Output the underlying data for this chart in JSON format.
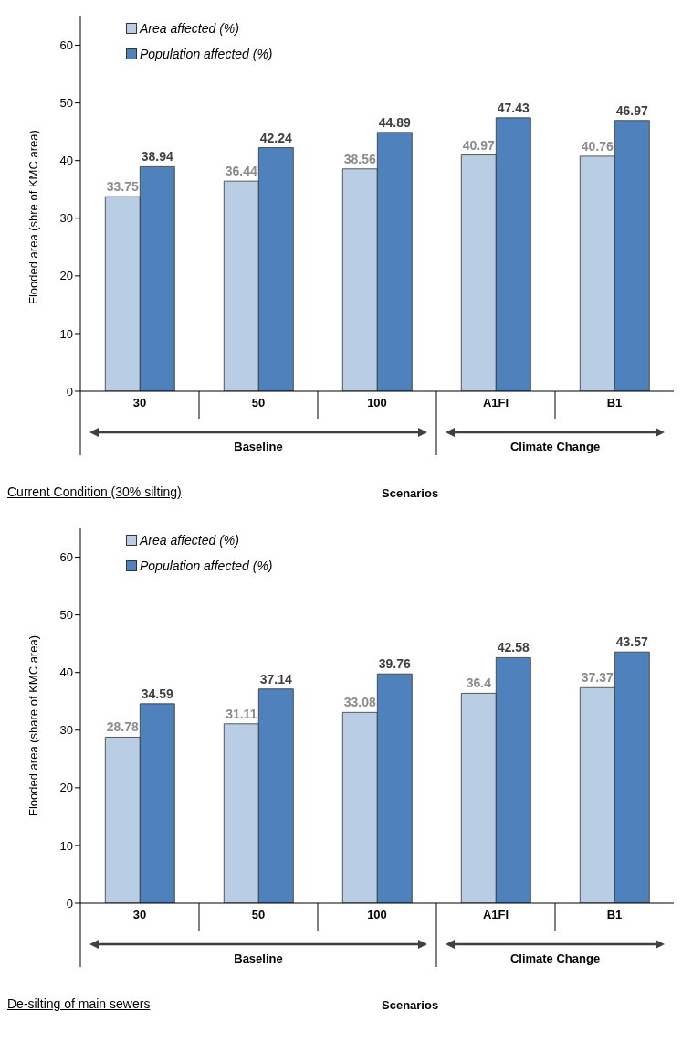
{
  "chart_data": [
    {
      "type": "bar",
      "ylabel": "Flooded area (shre of KMC area)",
      "xlabel": "Scenarios",
      "categories": [
        "30",
        "50",
        "100",
        "A1FI",
        "B1"
      ],
      "series": [
        {
          "name": "Area affected (%)",
          "color": "#b9cde5",
          "values": [
            33.75,
            36.44,
            38.56,
            40.97,
            40.76
          ]
        },
        {
          "name": "Population affected (%)",
          "color": "#4f81bd",
          "values": [
            38.94,
            42.24,
            44.89,
            47.43,
            46.97
          ]
        }
      ],
      "ylim": [
        0,
        65
      ],
      "yticks": [
        0,
        10,
        20,
        30,
        40,
        50,
        60
      ],
      "grid": false,
      "legend": "top left",
      "data_labels": true,
      "annotations": [
        "Baseline",
        "Climate Change",
        "Current Condition (30%  silting)"
      ]
    },
    {
      "type": "bar",
      "ylabel": "Flooded area (share of KMC area)",
      "xlabel": "Scenarios",
      "categories": [
        "30",
        "50",
        "100",
        "A1FI",
        "B1"
      ],
      "series": [
        {
          "name": "Area affected (%)",
          "color": "#b9cde5",
          "values": [
            28.78,
            31.11,
            33.08,
            36.4,
            37.37
          ]
        },
        {
          "name": "Population affected (%)",
          "color": "#4f81bd",
          "values": [
            34.59,
            37.14,
            39.76,
            42.58,
            43.57
          ]
        }
      ],
      "ylim": [
        0,
        65
      ],
      "yticks": [
        0,
        10,
        20,
        30,
        40,
        50,
        60
      ],
      "grid": false,
      "legend": "top left",
      "data_labels": true,
      "annotations": [
        "Baseline",
        "Climate Change",
        "De-silting of main sewers"
      ]
    }
  ]
}
